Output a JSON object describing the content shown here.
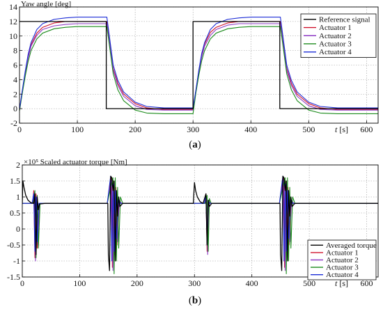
{
  "chart_data": [
    {
      "type": "line",
      "subfigure_label": "(a)",
      "ylabel": "Yaw angle [deg]",
      "xlabel": "t [s]",
      "xlim": [
        0,
        620
      ],
      "ylim": [
        -2,
        14
      ],
      "xticks": [
        0,
        100,
        200,
        300,
        400,
        500,
        600
      ],
      "yticks": [
        -2,
        0,
        2,
        4,
        6,
        8,
        10,
        12,
        14
      ],
      "grid": true,
      "legend_position": "top-right",
      "series": [
        {
          "name": "Reference signal",
          "color": "#000000",
          "x": [
            0,
            150,
            150,
            300,
            300,
            450,
            450,
            620
          ],
          "y": [
            12,
            12,
            0,
            0,
            12,
            12,
            0,
            0
          ]
        },
        {
          "name": "Actuator 1",
          "color": "#d0102a",
          "x": [
            0,
            5,
            10,
            15,
            20,
            30,
            40,
            60,
            80,
            100,
            150,
            151,
            158,
            162,
            170,
            180,
            200,
            220,
            250,
            300,
            305,
            310,
            315,
            320,
            330,
            340,
            360,
            380,
            400,
            450,
            451,
            458,
            462,
            470,
            480,
            500,
            520,
            550,
            620
          ],
          "y": [
            -0.2,
            2.5,
            5.0,
            7.2,
            8.8,
            10.4,
            11.2,
            11.8,
            12.0,
            12.0,
            12.0,
            12.0,
            8.0,
            5.5,
            3.5,
            2.0,
            0.7,
            0.1,
            -0.1,
            -0.1,
            2.5,
            5.2,
            7.4,
            8.9,
            10.5,
            11.2,
            11.8,
            12.0,
            12.0,
            12.0,
            12.0,
            8.0,
            5.5,
            3.5,
            2.0,
            0.7,
            0.1,
            -0.1,
            -0.1
          ]
        },
        {
          "name": "Actuator 2",
          "color": "#8e3bc4",
          "x": [
            0,
            5,
            10,
            15,
            20,
            30,
            40,
            60,
            80,
            100,
            150,
            151,
            158,
            162,
            170,
            180,
            200,
            220,
            250,
            300,
            305,
            310,
            315,
            320,
            330,
            340,
            360,
            380,
            400,
            450,
            451,
            458,
            462,
            470,
            480,
            500,
            520,
            550,
            620
          ],
          "y": [
            -0.2,
            2.4,
            4.9,
            7.0,
            8.6,
            10.1,
            10.9,
            11.4,
            11.6,
            11.7,
            11.7,
            11.7,
            7.7,
            5.3,
            3.2,
            1.7,
            0.4,
            -0.1,
            -0.2,
            -0.2,
            2.4,
            5.0,
            7.1,
            8.6,
            10.1,
            10.9,
            11.5,
            11.7,
            11.7,
            11.7,
            11.7,
            7.7,
            5.3,
            3.2,
            1.7,
            0.4,
            -0.1,
            -0.2,
            -0.2
          ]
        },
        {
          "name": "Actuator 3",
          "color": "#1a8a1a",
          "x": [
            0,
            5,
            10,
            15,
            20,
            30,
            40,
            60,
            80,
            100,
            150,
            151,
            158,
            162,
            170,
            180,
            200,
            220,
            250,
            300,
            305,
            310,
            315,
            320,
            330,
            340,
            360,
            380,
            400,
            450,
            451,
            458,
            462,
            470,
            480,
            500,
            520,
            550,
            620
          ],
          "y": [
            -0.3,
            2.2,
            4.5,
            6.5,
            8.0,
            9.6,
            10.4,
            11.0,
            11.2,
            11.3,
            11.3,
            11.3,
            7.2,
            4.8,
            2.6,
            1.1,
            -0.2,
            -0.6,
            -0.7,
            -0.7,
            2.2,
            4.6,
            6.6,
            8.0,
            9.6,
            10.4,
            11.0,
            11.2,
            11.3,
            11.3,
            11.3,
            7.2,
            4.8,
            2.6,
            1.1,
            -0.2,
            -0.6,
            -0.7,
            -0.7
          ]
        },
        {
          "name": "Actuator 4",
          "color": "#1a2bd6",
          "x": [
            0,
            5,
            10,
            15,
            20,
            30,
            40,
            60,
            80,
            100,
            150,
            151,
            158,
            162,
            170,
            180,
            200,
            220,
            250,
            300,
            305,
            310,
            315,
            320,
            330,
            340,
            360,
            380,
            400,
            450,
            451,
            458,
            462,
            470,
            480,
            500,
            520,
            550,
            620
          ],
          "y": [
            -0.1,
            2.6,
            5.2,
            7.5,
            9.1,
            10.9,
            11.7,
            12.3,
            12.5,
            12.6,
            12.6,
            12.6,
            8.4,
            6.0,
            3.9,
            2.3,
            0.9,
            0.3,
            0.1,
            0.1,
            2.6,
            5.3,
            7.6,
            9.1,
            10.9,
            11.7,
            12.3,
            12.5,
            12.6,
            12.6,
            12.6,
            8.4,
            6.0,
            3.9,
            2.3,
            0.9,
            0.3,
            0.1,
            0.1
          ]
        }
      ]
    },
    {
      "type": "line",
      "subfigure_label": "(b)",
      "ylabel": "Scaled actuator torque [Nm]",
      "y_multiplier": "×10⁵",
      "xlabel": "t [s]",
      "xlim": [
        0,
        620
      ],
      "ylim": [
        -1.5,
        2.0
      ],
      "xticks": [
        0,
        100,
        200,
        300,
        400,
        500,
        600
      ],
      "yticks": [
        -1.5,
        -1.0,
        -0.5,
        0,
        0.5,
        1.0,
        1.5,
        2.0
      ],
      "grid": true,
      "legend_position": "bottom-right",
      "series": [
        {
          "name": "Averaged torque",
          "color": "#000000",
          "x": [
            0,
            1,
            3,
            6,
            10,
            15,
            20,
            22,
            24,
            26,
            28,
            30,
            40,
            100,
            148,
            149,
            150,
            152,
            154,
            156,
            158,
            160,
            162,
            164,
            166,
            168,
            170,
            175,
            180,
            200,
            250,
            298,
            300,
            302,
            305,
            310,
            315,
            320,
            322,
            324,
            326,
            330,
            340,
            400,
            448,
            449,
            450,
            452,
            454,
            456,
            458,
            460,
            462,
            464,
            466,
            468,
            470,
            475,
            480,
            500,
            550,
            620
          ],
          "y": [
            0.78,
            1.5,
            1.3,
            1.05,
            0.9,
            0.82,
            0.8,
            1.1,
            -0.8,
            1.0,
            0.6,
            0.78,
            0.8,
            0.8,
            0.8,
            0.8,
            -0.8,
            -1.3,
            1.65,
            1.6,
            1.2,
            1.5,
            -1.0,
            1.2,
            0.4,
            1.0,
            0.7,
            0.8,
            0.8,
            0.8,
            0.8,
            0.8,
            1.45,
            1.2,
            1.0,
            0.85,
            0.8,
            1.1,
            -0.5,
            0.9,
            0.7,
            0.8,
            0.8,
            0.8,
            0.8,
            0.8,
            -0.8,
            -1.3,
            1.65,
            1.6,
            1.2,
            1.5,
            -1.0,
            1.2,
            0.4,
            1.0,
            0.7,
            0.8,
            0.8,
            0.8,
            0.8,
            0.8
          ]
        },
        {
          "name": "Actuator 1",
          "color": "#d0102a",
          "x": [
            0,
            18,
            20,
            22,
            24,
            26,
            30,
            148,
            155,
            157,
            159,
            161,
            163,
            165,
            168,
            172,
            180,
            318,
            320,
            322,
            324,
            328,
            448,
            455,
            457,
            459,
            461,
            463,
            465,
            468,
            472,
            480,
            620
          ],
          "y": [
            0.8,
            0.8,
            1.2,
            -0.9,
            1.1,
            -0.6,
            0.8,
            0.8,
            1.6,
            -1.2,
            1.5,
            -0.8,
            1.3,
            -0.5,
            0.9,
            0.8,
            0.8,
            0.8,
            1.1,
            -0.7,
            0.9,
            0.8,
            0.8,
            1.6,
            -1.2,
            1.5,
            -0.8,
            1.3,
            -0.5,
            0.9,
            0.8,
            0.8,
            0.8
          ]
        },
        {
          "name": "Actuator 2",
          "color": "#8e3bc4",
          "x": [
            0,
            18,
            21,
            23,
            25,
            27,
            30,
            148,
            156,
            158,
            160,
            162,
            164,
            166,
            169,
            173,
            180,
            318,
            321,
            323,
            325,
            328,
            448,
            456,
            458,
            460,
            462,
            464,
            466,
            469,
            473,
            480,
            620
          ],
          "y": [
            0.8,
            0.8,
            1.15,
            -1.0,
            1.0,
            -0.5,
            0.8,
            0.8,
            1.55,
            -1.3,
            1.4,
            -0.9,
            1.2,
            -0.4,
            0.9,
            0.8,
            0.8,
            0.8,
            1.0,
            -0.8,
            0.9,
            0.8,
            0.8,
            1.55,
            -1.3,
            1.4,
            -0.9,
            1.2,
            -0.4,
            0.9,
            0.8,
            0.8,
            0.8
          ]
        },
        {
          "name": "Actuator 3",
          "color": "#1a8a1a",
          "x": [
            0,
            19,
            22,
            24,
            26,
            28,
            31,
            148,
            158,
            160,
            162,
            164,
            166,
            168,
            171,
            175,
            182,
            319,
            322,
            324,
            326,
            329,
            448,
            458,
            460,
            462,
            464,
            466,
            468,
            471,
            475,
            482,
            620
          ],
          "y": [
            0.8,
            0.8,
            1.2,
            -0.9,
            1.05,
            -0.6,
            0.8,
            0.8,
            1.6,
            -1.4,
            1.6,
            -1.0,
            1.3,
            -0.6,
            1.0,
            0.8,
            0.8,
            0.8,
            1.05,
            -0.7,
            0.95,
            0.8,
            0.8,
            1.6,
            -1.4,
            1.6,
            -1.0,
            1.3,
            -0.6,
            1.0,
            0.8,
            0.8,
            0.8
          ]
        },
        {
          "name": "Actuator 4",
          "color": "#1a2bd6",
          "x": [
            0,
            17,
            20,
            22,
            24,
            26,
            29,
            148,
            154,
            156,
            158,
            160,
            162,
            164,
            167,
            171,
            178,
            317,
            320,
            322,
            324,
            327,
            448,
            454,
            456,
            458,
            460,
            462,
            464,
            467,
            471,
            478,
            620
          ],
          "y": [
            0.8,
            0.8,
            1.1,
            -0.7,
            1.0,
            -0.4,
            0.8,
            0.8,
            1.65,
            -1.0,
            1.4,
            -0.7,
            1.2,
            -0.3,
            0.9,
            0.8,
            0.8,
            0.8,
            1.05,
            -0.5,
            0.85,
            0.8,
            0.8,
            1.65,
            -1.0,
            1.4,
            -0.7,
            1.2,
            -0.3,
            0.9,
            0.8,
            0.8,
            0.8
          ]
        }
      ]
    }
  ]
}
